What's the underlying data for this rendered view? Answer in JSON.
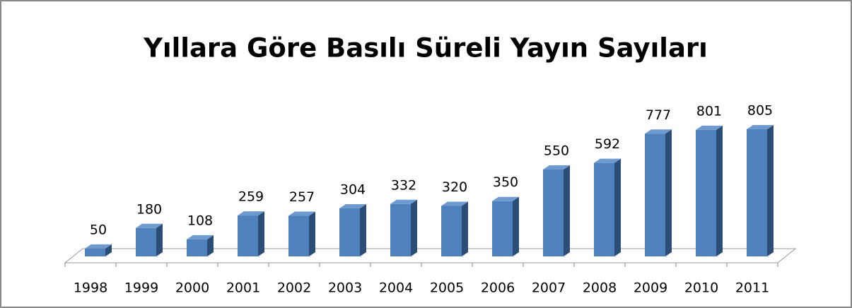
{
  "chart_data": {
    "type": "bar3d",
    "title": "Yıllara Göre Basılı Süreli Yayın Sayıları",
    "categories": [
      "1998",
      "1999",
      "2000",
      "2001",
      "2002",
      "2003",
      "2004",
      "2005",
      "2006",
      "2007",
      "2008",
      "2009",
      "2010",
      "2011"
    ],
    "values": [
      50,
      180,
      108,
      259,
      257,
      304,
      332,
      320,
      350,
      550,
      592,
      777,
      801,
      805
    ],
    "color": "#4f81bd"
  }
}
